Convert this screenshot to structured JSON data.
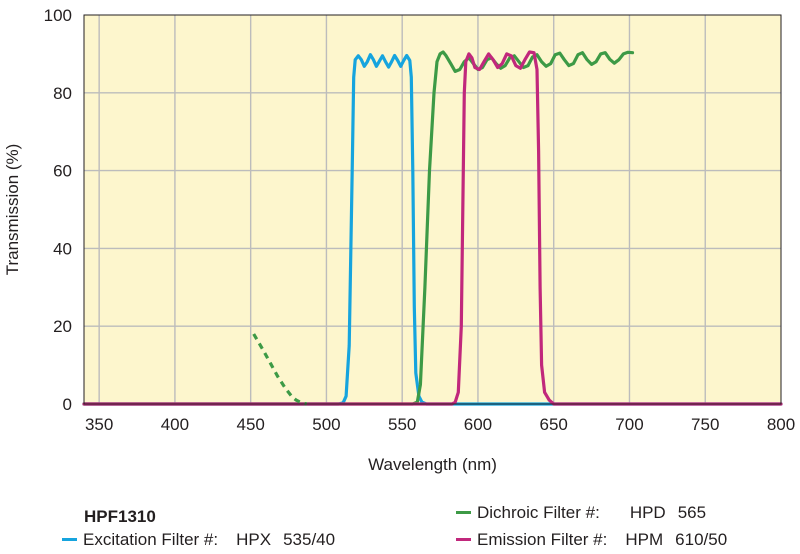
{
  "chart_data": {
    "type": "line",
    "xlabel": "Wavelength (nm)",
    "ylabel": "Transmission (%)",
    "xlim": [
      340,
      800
    ],
    "ylim": [
      0,
      100
    ],
    "x_ticks": [
      350,
      400,
      450,
      500,
      550,
      600,
      650,
      700,
      750,
      800
    ],
    "y_ticks": [
      0,
      20,
      40,
      60,
      80,
      100
    ],
    "grid": true,
    "background_color": "#fdf6cd",
    "series": [
      {
        "color": "#16a4de",
        "points": [
          [
            340,
            0
          ],
          [
            508,
            0
          ],
          [
            511,
            0.3
          ],
          [
            513,
            2
          ],
          [
            515,
            15
          ],
          [
            517,
            60
          ],
          [
            518,
            84
          ],
          [
            519,
            88.5
          ],
          [
            521,
            89.5
          ],
          [
            523,
            88.5
          ],
          [
            525,
            86.8
          ],
          [
            527,
            88
          ],
          [
            529,
            89.8
          ],
          [
            531,
            88.5
          ],
          [
            533,
            86.8
          ],
          [
            535,
            88.2
          ],
          [
            537,
            89.5
          ],
          [
            539,
            88
          ],
          [
            541,
            86.6
          ],
          [
            543,
            88
          ],
          [
            545,
            89.6
          ],
          [
            547,
            88.3
          ],
          [
            549,
            86.8
          ],
          [
            551,
            88.3
          ],
          [
            553,
            89.6
          ],
          [
            555,
            88.3
          ],
          [
            556,
            84
          ],
          [
            557,
            60
          ],
          [
            558,
            25
          ],
          [
            559,
            8
          ],
          [
            561,
            2
          ],
          [
            563,
            0.5
          ],
          [
            566,
            0
          ],
          [
            800,
            0
          ]
        ]
      },
      {
        "color": "#3d9a46",
        "points": [
          [
            340,
            0
          ],
          [
            557,
            0
          ],
          [
            560,
            0.5
          ],
          [
            562,
            5
          ],
          [
            565,
            30
          ],
          [
            568,
            60
          ],
          [
            571,
            80
          ],
          [
            573,
            88
          ],
          [
            575,
            90
          ],
          [
            577,
            90.5
          ],
          [
            579,
            89.5
          ],
          [
            582,
            87.5
          ],
          [
            585,
            85.5
          ],
          [
            588,
            86
          ],
          [
            591,
            88
          ],
          [
            594,
            89
          ],
          [
            597,
            87.5
          ],
          [
            600,
            86
          ],
          [
            603,
            86.5
          ],
          [
            606,
            88.5
          ],
          [
            609,
            89
          ],
          [
            612,
            87.5
          ],
          [
            615,
            86.3
          ],
          [
            618,
            87
          ],
          [
            621,
            89
          ],
          [
            624,
            89.5
          ],
          [
            627,
            88
          ],
          [
            630,
            86.5
          ],
          [
            633,
            87
          ],
          [
            636,
            89.2
          ],
          [
            639,
            89.8
          ],
          [
            642,
            88
          ],
          [
            645,
            86.8
          ],
          [
            648,
            87.5
          ],
          [
            651,
            89.8
          ],
          [
            654,
            90.2
          ],
          [
            657,
            88.5
          ],
          [
            660,
            87
          ],
          [
            663,
            87.5
          ],
          [
            666,
            89.8
          ],
          [
            669,
            90.3
          ],
          [
            672,
            88.5
          ],
          [
            675,
            87.3
          ],
          [
            678,
            88
          ],
          [
            681,
            90
          ],
          [
            684,
            90.3
          ],
          [
            687,
            88.6
          ],
          [
            690,
            87.6
          ],
          [
            693,
            88.5
          ],
          [
            696,
            90
          ],
          [
            699,
            90.4
          ],
          [
            702,
            90.3
          ]
        ]
      },
      {
        "color": "#c1287c",
        "points": [
          [
            340,
            0
          ],
          [
            583,
            0
          ],
          [
            585,
            0.5
          ],
          [
            587,
            3
          ],
          [
            589,
            20
          ],
          [
            590,
            50
          ],
          [
            591,
            80
          ],
          [
            592,
            88
          ],
          [
            594,
            90
          ],
          [
            596,
            89
          ],
          [
            598,
            86.5
          ],
          [
            601,
            86
          ],
          [
            604,
            88
          ],
          [
            607,
            90
          ],
          [
            610,
            88.5
          ],
          [
            613,
            86.5
          ],
          [
            616,
            87.5
          ],
          [
            619,
            90
          ],
          [
            622,
            89.5
          ],
          [
            625,
            87
          ],
          [
            628,
            86.3
          ],
          [
            631,
            88.5
          ],
          [
            634,
            90.5
          ],
          [
            637,
            90.3
          ],
          [
            639,
            86
          ],
          [
            640,
            65
          ],
          [
            641,
            30
          ],
          [
            642,
            10
          ],
          [
            644,
            3
          ],
          [
            647,
            1
          ],
          [
            650,
            0
          ],
          [
            800,
            0
          ]
        ]
      },
      {
        "color": "#3d9a46",
        "dashed": true,
        "points": [
          [
            452,
            18
          ],
          [
            458,
            14
          ],
          [
            463,
            10.5
          ],
          [
            468,
            7
          ],
          [
            473,
            4
          ],
          [
            477,
            2
          ],
          [
            480,
            1
          ],
          [
            483,
            0.4
          ],
          [
            487,
            0
          ]
        ]
      }
    ]
  },
  "legend": {
    "title": "HPF1310",
    "items": [
      {
        "name": "Excitation Filter #:",
        "code": "HPX",
        "value": "535/40",
        "color": "#16a4de"
      },
      {
        "name": "Dichroic Filter #:",
        "code": "HPD",
        "value": "565",
        "color": "#3d9a46"
      },
      {
        "name": "Emission Filter #:",
        "code": "HPM",
        "value": "610/50",
        "color": "#c1287c"
      }
    ]
  }
}
